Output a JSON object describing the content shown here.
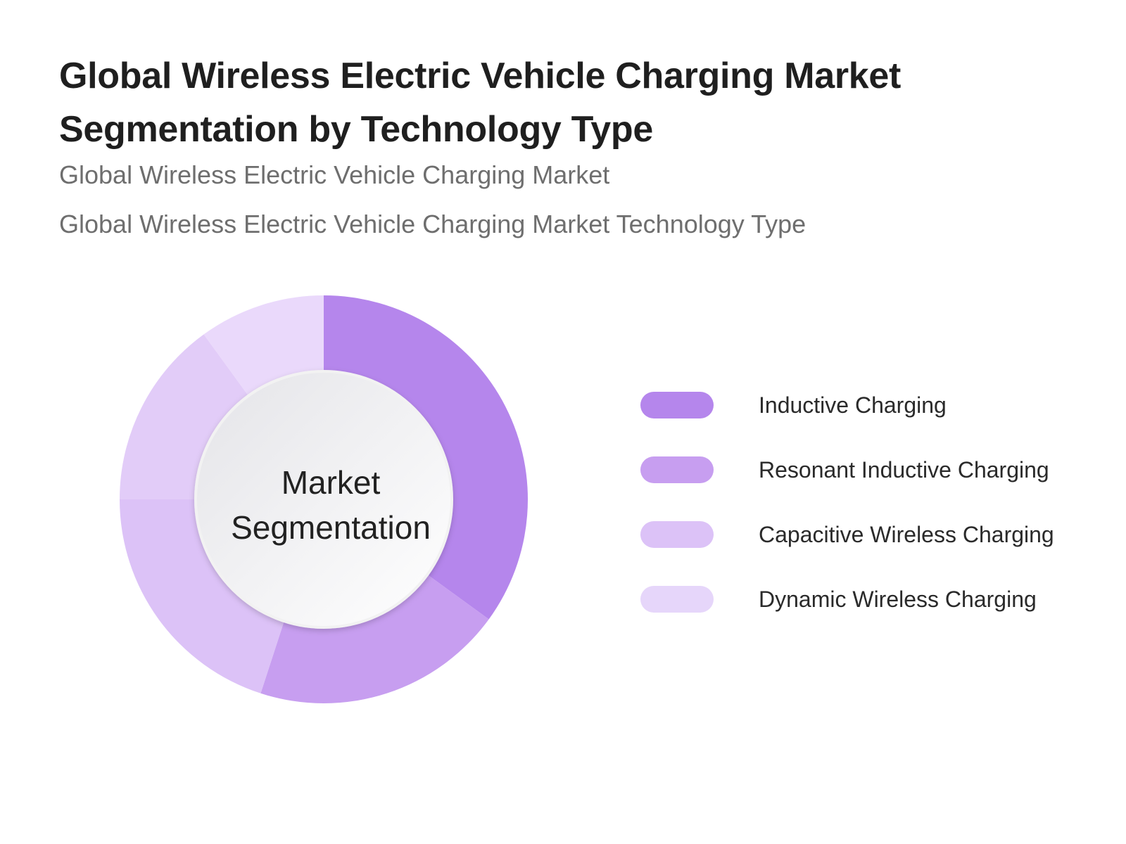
{
  "header": {
    "title": "Global Wireless Electric Vehicle Charging Market Segmentation by Technology Type",
    "subtitle_1": "Global Wireless Electric Vehicle Charging Market",
    "subtitle_2": "Global Wireless Electric Vehicle Charging Market Technology Type"
  },
  "chart_data": {
    "type": "pie",
    "style": "donut",
    "center_label": "Market Segmentation",
    "categories": [
      "Inductive Charging",
      "Resonant Inductive Charging",
      "Capacitive Wireless Charging",
      "Dynamic Wireless Charging"
    ],
    "values": [
      35,
      20,
      35,
      10
    ],
    "colors": [
      "#b586ec",
      "#c79ef0",
      "#dcc2f7",
      "#e6d6fa"
    ],
    "segment_colors": [
      "#b586ec",
      "#c79ef0",
      "#dcc2f7",
      "#e2ccf8",
      "#ead9fb"
    ],
    "segment_values": [
      35,
      20,
      20,
      15,
      10
    ],
    "legend": "right"
  }
}
